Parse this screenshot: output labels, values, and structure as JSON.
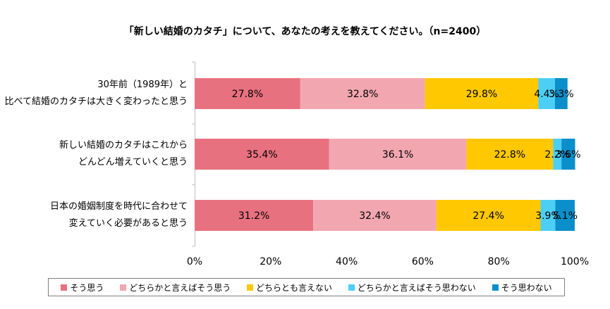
{
  "chart_data": {
    "type": "bar",
    "orientation": "horizontal-stacked-100",
    "title": "「新しい結婚のカタチ」について、あなたの考えを教えてください。（n=2400）",
    "categories": [
      [
        "30年前（1989年）と",
        "比べて結婚のカタチは大きく変わったと思う"
      ],
      [
        "新しい結婚のカタチはこれから",
        "どんどん増えていくと思う"
      ],
      [
        "日本の婚姻制度を時代に合わせて",
        "変えていく必要があると思う"
      ]
    ],
    "series": [
      {
        "name": "そう思う",
        "color": "#e8717f",
        "values": [
          27.8,
          35.4,
          31.2
        ],
        "labels": [
          "27.8%",
          "35.4%",
          "31.2%"
        ]
      },
      {
        "name": "どちらかと言えばそう思う",
        "color": "#f2a7b0",
        "values": [
          32.8,
          36.1,
          32.4
        ],
        "labels": [
          "32.8%",
          "36.1%",
          "32.4%"
        ]
      },
      {
        "name": "どちらとも言えない",
        "color": "#ffc800",
        "values": [
          29.8,
          22.8,
          27.4
        ],
        "labels": [
          "29.8%",
          "22.8%",
          "27.4%"
        ]
      },
      {
        "name": "どちらかと言えばそう思わない",
        "color": "#4dcff5",
        "values": [
          4.4,
          2.2,
          3.9
        ],
        "labels": [
          "4.4%",
          "2.2%",
          "3.9%"
        ]
      },
      {
        "name": "そう思わない",
        "color": "#0a8fcb",
        "values": [
          3.3,
          3.6,
          5.1
        ],
        "labels": [
          "3.3%",
          "3.6%",
          "5.1%"
        ]
      }
    ],
    "xlim": [
      0,
      100
    ],
    "xticks": [
      "0%",
      "20%",
      "40%",
      "60%",
      "80%",
      "100%"
    ],
    "grid": false,
    "legend_position": "bottom"
  }
}
